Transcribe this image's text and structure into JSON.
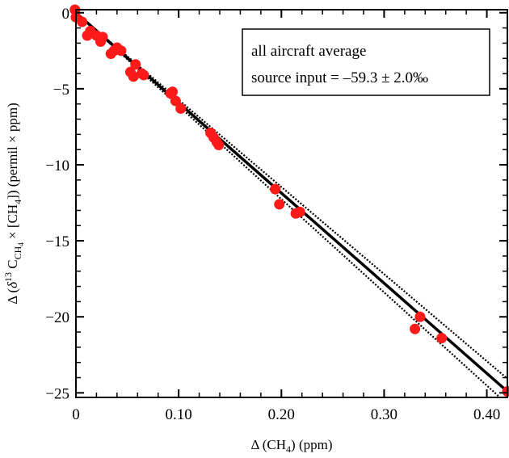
{
  "chart_data": {
    "type": "scatter",
    "title": "",
    "xlabel": "Δ (CH",
    "xlabel_sub": "4",
    "xlabel_tail": ") (ppm)",
    "ylabel_parts": {
      "a": "Δ (",
      "delta": "δ",
      "sup13": "13",
      "c": " C",
      "subch4": "CH",
      "subch4_4": "4",
      "times": " × [CH",
      "sub4": "4",
      "tail": "]) (permil × ppm)"
    },
    "xlim": [
      0,
      0.42
    ],
    "ylim": [
      -25.3,
      0.2
    ],
    "xticks": [
      0,
      0.1,
      0.2,
      0.3,
      0.4
    ],
    "xtick_labels": [
      "0",
      "0.10",
      "0.20",
      "0.30",
      "0.40"
    ],
    "yticks": [
      0,
      -5,
      -10,
      -15,
      -20,
      -25
    ],
    "ytick_labels": [
      "0",
      "−5",
      "−10",
      "−15",
      "−20",
      "−25"
    ],
    "grid": false,
    "legend": {
      "placement": "top-right",
      "lines": [
        "all aircraft average",
        "source input = –59.3 ± 2.0‰"
      ]
    },
    "fit": {
      "slope": -59.3,
      "intercept": 0,
      "x_range": [
        0,
        0.42
      ]
    },
    "confidence": {
      "slope_low": -57.3,
      "slope_high": -61.3
    },
    "points": [
      {
        "x": -0.001,
        "y": 0.2
      },
      {
        "x": 0.0,
        "y": -0.3
      },
      {
        "x": 0.006,
        "y": -0.6
      },
      {
        "x": 0.011,
        "y": -1.5
      },
      {
        "x": 0.014,
        "y": -1.2
      },
      {
        "x": 0.02,
        "y": -1.5
      },
      {
        "x": 0.024,
        "y": -1.9
      },
      {
        "x": 0.026,
        "y": -1.6
      },
      {
        "x": 0.034,
        "y": -2.7
      },
      {
        "x": 0.037,
        "y": -2.5
      },
      {
        "x": 0.04,
        "y": -2.3
      },
      {
        "x": 0.044,
        "y": -2.5
      },
      {
        "x": 0.053,
        "y": -3.9
      },
      {
        "x": 0.056,
        "y": -4.2
      },
      {
        "x": 0.058,
        "y": -3.4
      },
      {
        "x": 0.064,
        "y": -4.0
      },
      {
        "x": 0.066,
        "y": -4.1
      },
      {
        "x": 0.092,
        "y": -5.3
      },
      {
        "x": 0.094,
        "y": -5.2
      },
      {
        "x": 0.097,
        "y": -5.8
      },
      {
        "x": 0.102,
        "y": -6.3
      },
      {
        "x": 0.131,
        "y": -7.9
      },
      {
        "x": 0.134,
        "y": -8.2
      },
      {
        "x": 0.137,
        "y": -8.5
      },
      {
        "x": 0.139,
        "y": -8.7
      },
      {
        "x": 0.194,
        "y": -11.6
      },
      {
        "x": 0.198,
        "y": -12.6
      },
      {
        "x": 0.214,
        "y": -13.2
      },
      {
        "x": 0.218,
        "y": -13.1
      },
      {
        "x": 0.33,
        "y": -20.8
      },
      {
        "x": 0.335,
        "y": -20.0
      },
      {
        "x": 0.356,
        "y": -21.4
      },
      {
        "x": 0.42,
        "y": -24.9
      }
    ],
    "colors": {
      "points": "#ff1a1a",
      "line": "#000000",
      "axes": "#000000"
    }
  }
}
